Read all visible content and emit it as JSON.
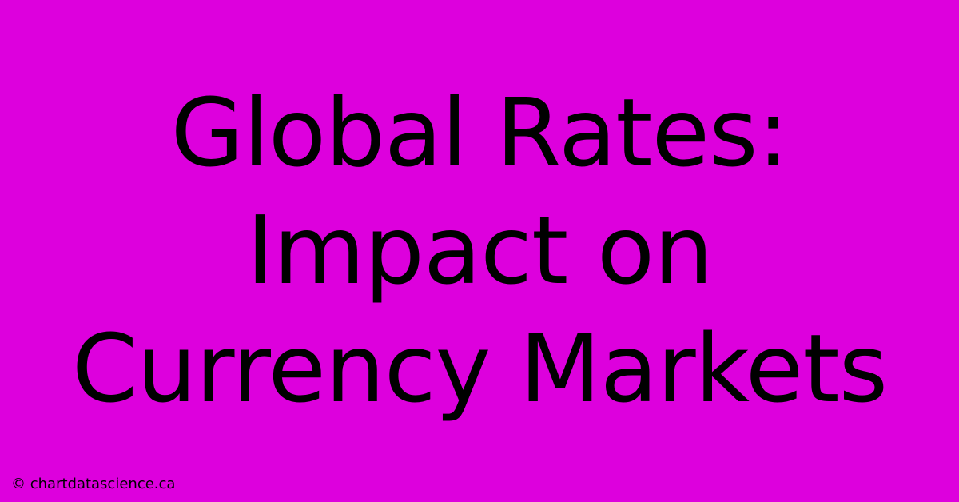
{
  "banner": {
    "title_line1": "Global Rates:",
    "title_line2": "Impact on",
    "title_line3": "Currency Markets",
    "attribution": "© chartdatascience.ca",
    "background_color": "#dd00dd",
    "text_color": "#000000",
    "title_fontsize": 118,
    "title_lineheight": 1.25,
    "attribution_fontsize": 18
  }
}
